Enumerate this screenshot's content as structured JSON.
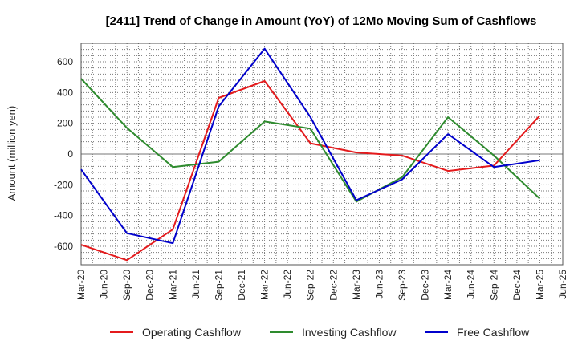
{
  "chart_data": {
    "type": "line",
    "title": "[2411]  Trend of Change in Amount (YoY) of 12Mo Moving Sum of Cashflows",
    "ylabel": "Amount (million yen)",
    "xlabel": "",
    "ylim": [
      -720,
      720
    ],
    "yticks": [
      -600,
      -400,
      -200,
      0,
      200,
      400,
      600
    ],
    "grid": true,
    "legend_position": "bottom",
    "x_categories": [
      "Mar-20",
      "Jun-20",
      "Sep-20",
      "Dec-20",
      "Mar-21",
      "Jun-21",
      "Sep-21",
      "Dec-21",
      "Mar-22",
      "Jun-22",
      "Sep-22",
      "Dec-22",
      "Mar-23",
      "Jun-23",
      "Sep-23",
      "Dec-23",
      "Mar-24",
      "Jun-24",
      "Sep-24",
      "Dec-24",
      "Mar-25",
      "Jun-25"
    ],
    "series": [
      {
        "name": "Operating Cashflow",
        "color": "#e41a1c",
        "points": [
          {
            "x": "Mar-20",
            "y": -590
          },
          {
            "x": "Sep-20",
            "y": -690
          },
          {
            "x": "Mar-21",
            "y": -490
          },
          {
            "x": "Sep-21",
            "y": 365
          },
          {
            "x": "Mar-22",
            "y": 475
          },
          {
            "x": "Sep-22",
            "y": 70
          },
          {
            "x": "Mar-23",
            "y": 10
          },
          {
            "x": "Sep-23",
            "y": -10
          },
          {
            "x": "Mar-24",
            "y": -110
          },
          {
            "x": "Sep-24",
            "y": -75
          },
          {
            "x": "Mar-25",
            "y": 250
          }
        ]
      },
      {
        "name": "Investing Cashflow",
        "color": "#2e8b2e",
        "points": [
          {
            "x": "Mar-20",
            "y": 490
          },
          {
            "x": "Sep-20",
            "y": 170
          },
          {
            "x": "Mar-21",
            "y": -85
          },
          {
            "x": "Sep-21",
            "y": -50
          },
          {
            "x": "Mar-22",
            "y": 212
          },
          {
            "x": "Sep-22",
            "y": 165
          },
          {
            "x": "Mar-23",
            "y": -310
          },
          {
            "x": "Sep-23",
            "y": -150
          },
          {
            "x": "Mar-24",
            "y": 240
          },
          {
            "x": "Sep-24",
            "y": -10
          },
          {
            "x": "Mar-25",
            "y": -290
          }
        ]
      },
      {
        "name": "Free Cashflow",
        "color": "#0000cc",
        "points": [
          {
            "x": "Mar-20",
            "y": -100
          },
          {
            "x": "Sep-20",
            "y": -515
          },
          {
            "x": "Mar-21",
            "y": -580
          },
          {
            "x": "Sep-21",
            "y": 310
          },
          {
            "x": "Mar-22",
            "y": 685
          },
          {
            "x": "Sep-22",
            "y": 240
          },
          {
            "x": "Mar-23",
            "y": -300
          },
          {
            "x": "Sep-23",
            "y": -165
          },
          {
            "x": "Mar-24",
            "y": 130
          },
          {
            "x": "Sep-24",
            "y": -85
          },
          {
            "x": "Mar-25",
            "y": -40
          }
        ]
      }
    ]
  }
}
